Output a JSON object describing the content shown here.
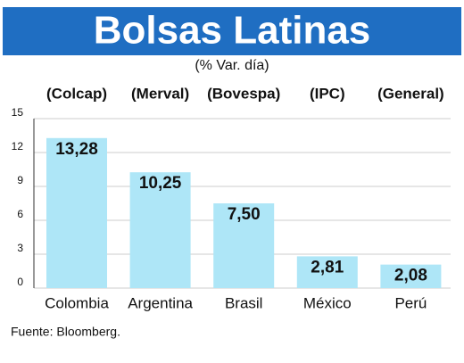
{
  "chart_data": {
    "type": "bar",
    "title": "Bolsas Latinas",
    "subtitle": "(% Var. día)",
    "categories": [
      "Colombia",
      "Argentina",
      "Brasil",
      "México",
      "Perú"
    ],
    "index_labels": [
      "(Colcap)",
      "(Merval)",
      "(Bovespa)",
      "(IPC)",
      "(General)"
    ],
    "values": [
      13.28,
      10.25,
      7.5,
      2.81,
      2.08
    ],
    "value_labels": [
      "13,28",
      "10,25",
      "7,50",
      "2,81",
      "2,08"
    ],
    "color": "#aee6f7",
    "ylim": [
      0,
      15
    ],
    "yticks": [
      0,
      3,
      6,
      9,
      12,
      15
    ],
    "grid": true,
    "source": "Fuente: Bloomberg."
  }
}
